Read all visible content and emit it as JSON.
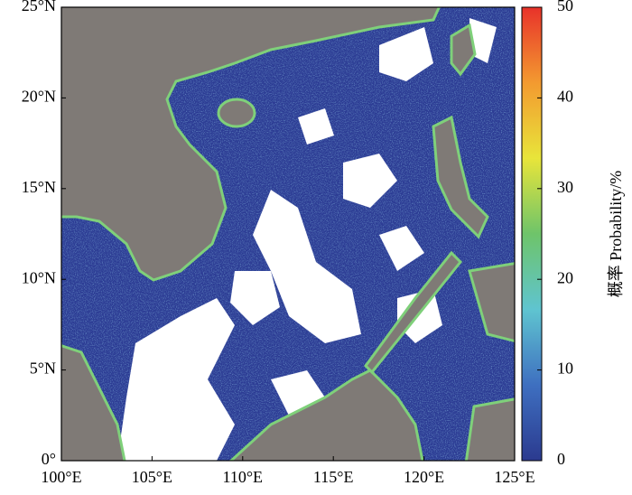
{
  "chart_data": {
    "type": "map",
    "xlim": [
      100,
      125
    ],
    "ylim": [
      0,
      25
    ],
    "xticks": [
      {
        "value": 100,
        "label": "100°E"
      },
      {
        "value": 105,
        "label": "105°E"
      },
      {
        "value": 110,
        "label": "110°E"
      },
      {
        "value": 115,
        "label": "115°E"
      },
      {
        "value": 120,
        "label": "120°E"
      },
      {
        "value": 125,
        "label": "125°E"
      }
    ],
    "yticks": [
      {
        "value": 0,
        "label": "0°"
      },
      {
        "value": 5,
        "label": "5°N"
      },
      {
        "value": 10,
        "label": "10°N"
      },
      {
        "value": 15,
        "label": "15°N"
      },
      {
        "value": 20,
        "label": "20°N"
      },
      {
        "value": 25,
        "label": "25°N"
      }
    ],
    "colorbar": {
      "label": "概率 Probability/%",
      "lim": [
        0,
        50
      ],
      "ticks": [
        0,
        10,
        20,
        30,
        40,
        50
      ],
      "colormap": [
        "#2b3a8f",
        "#3e6fc0",
        "#5fc4d0",
        "#6ec46a",
        "#e8e53a",
        "#f39a30",
        "#e8322a"
      ]
    }
  }
}
